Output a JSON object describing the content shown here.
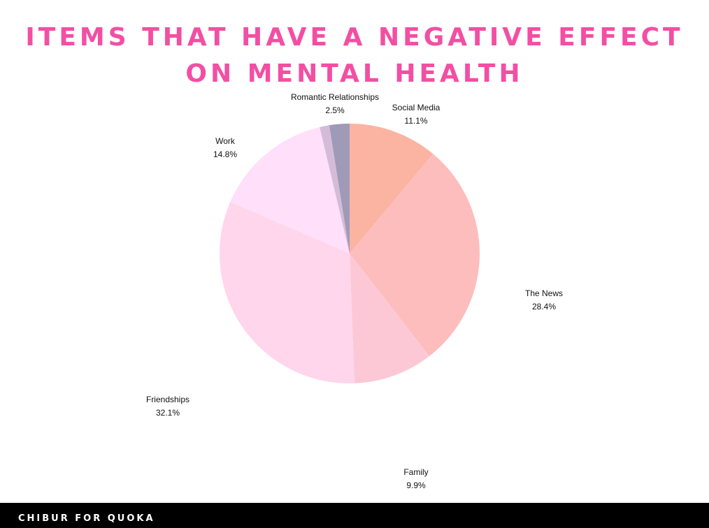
{
  "title_lines": [
    "ITEMS THAT HAVE A NEGATIVE EFFECT",
    "ON MENTAL HEALTH"
  ],
  "footer": {
    "text": "CHIBUR FOR QUOKA"
  },
  "colors": {
    "title": "#f24fa3",
    "footer_bg": "#000000"
  },
  "chart_data": {
    "type": "pie",
    "title": "ITEMS THAT HAVE A NEGATIVE EFFECT ON MENTAL HEALTH",
    "start": "12 o'clock",
    "direction": "clockwise",
    "slices": [
      {
        "label": "Social Media",
        "value": 11.1,
        "value_label": "11.1%",
        "color": "#fbb4a2"
      },
      {
        "label": "The News",
        "value": 28.4,
        "value_label": "28.4%",
        "color": "#fdbdbd"
      },
      {
        "label": "Family",
        "value": 9.9,
        "value_label": "9.9%",
        "color": "#fdc8d6"
      },
      {
        "label": "Friendships",
        "value": 32.1,
        "value_label": "32.1%",
        "color": "#ffd6ec"
      },
      {
        "label": "Work",
        "value": 14.8,
        "value_label": "14.8%",
        "color": "#ffdff9"
      },
      {
        "label": "",
        "value": 1.2,
        "value_label": "",
        "color": "#d4bcd9"
      },
      {
        "label": "Romantic Relationships",
        "value": 2.5,
        "value_label": "2.5%",
        "color": "#9e9ab8"
      }
    ]
  }
}
